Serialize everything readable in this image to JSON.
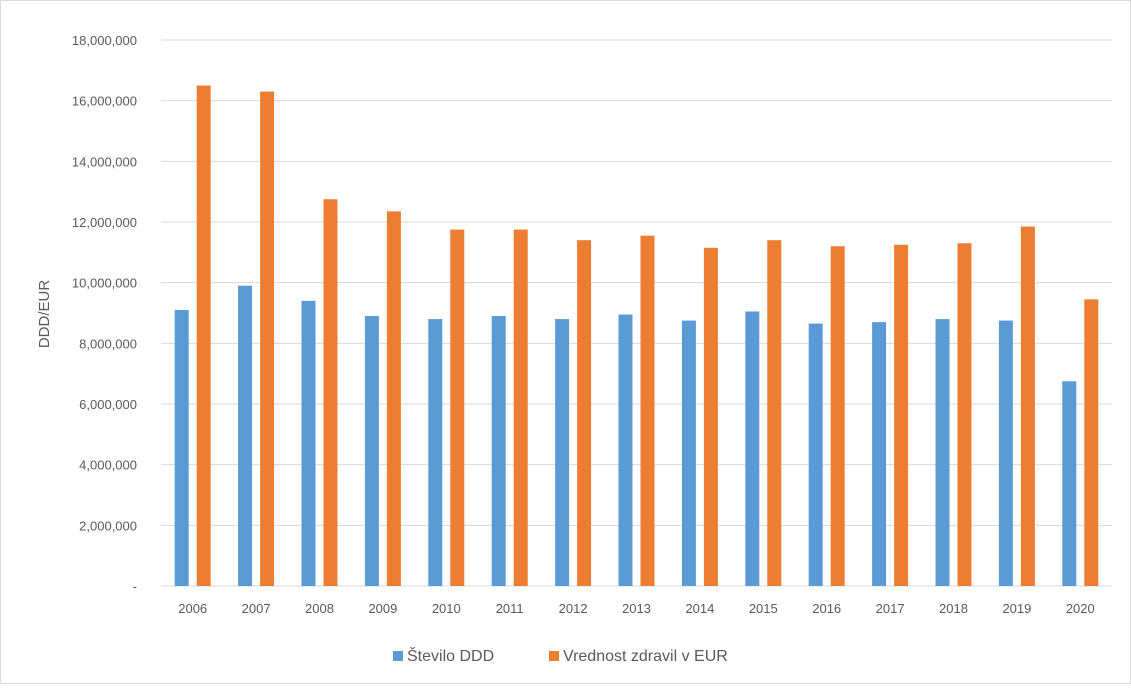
{
  "chart_data": {
    "type": "bar",
    "ylabel": "DDD/EUR",
    "xlabel": "",
    "ylim": [
      0,
      18000000
    ],
    "ytick_step": 2000000,
    "ytick_labels": [
      "-",
      "2,000,000",
      "4,000,000",
      "6,000,000",
      "8,000,000",
      "10,000,000",
      "12,000,000",
      "14,000,000",
      "16,000,000",
      "18,000,000"
    ],
    "grid": true,
    "legend_position": "bottom",
    "categories": [
      "2006",
      "2007",
      "2008",
      "2009",
      "2010",
      "2011",
      "2012",
      "2013",
      "2014",
      "2015",
      "2016",
      "2017",
      "2018",
      "2019",
      "2020"
    ],
    "series": [
      {
        "name": "Število DDD",
        "color": "#5b9bd5",
        "values": [
          9100000,
          9900000,
          9400000,
          8900000,
          8800000,
          8900000,
          8800000,
          8950000,
          8750000,
          9050000,
          8650000,
          8700000,
          8800000,
          8750000,
          6750000
        ]
      },
      {
        "name": "Vrednost zdravil v EUR",
        "color": "#ed7d31",
        "values": [
          16500000,
          16300000,
          12750000,
          12350000,
          11750000,
          11750000,
          11400000,
          11550000,
          11150000,
          11400000,
          11200000,
          11250000,
          11300000,
          11850000,
          9450000
        ]
      }
    ]
  }
}
